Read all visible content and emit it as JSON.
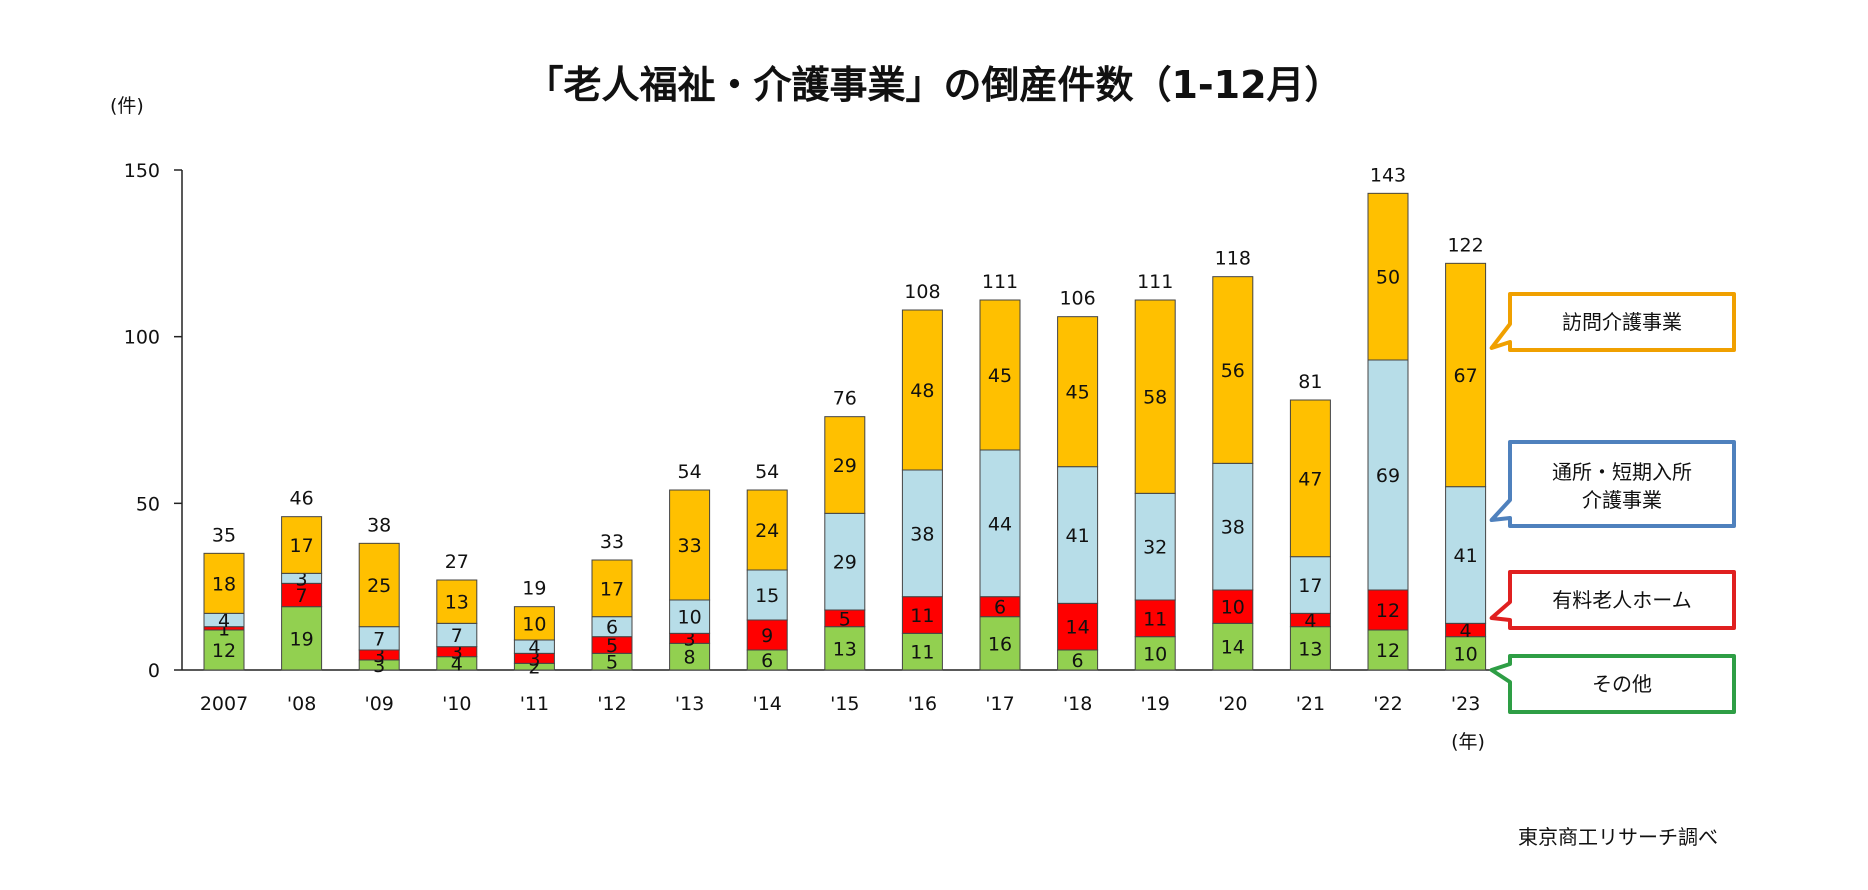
{
  "chart_data": {
    "type": "bar",
    "stacked": true,
    "title": "「老人福祉・介護事業」の倒産件数（1-12月）",
    "y_unit": "(件)",
    "x_unit": "(年)",
    "source": "東京商工リサーチ調べ",
    "ylim": [
      0,
      150
    ],
    "yticks": [
      "0",
      "50",
      "100",
      "150"
    ],
    "categories": [
      "2007",
      "'08",
      "'09",
      "'10",
      "'11",
      "'12",
      "'13",
      "'14",
      "'15",
      "'16",
      "'17",
      "'18",
      "'19",
      "'20",
      "'21",
      "'22",
      "'23"
    ],
    "series": [
      {
        "name": "その他",
        "color": "#92d050",
        "border": "#2e9e45",
        "values": [
          12,
          19,
          3,
          4,
          2,
          5,
          8,
          6,
          13,
          11,
          16,
          6,
          10,
          14,
          13,
          12,
          10
        ]
      },
      {
        "name": "有料老人ホーム",
        "color": "#ff0000",
        "border": "#e02020",
        "values": [
          1,
          7,
          3,
          3,
          3,
          5,
          3,
          9,
          5,
          11,
          6,
          14,
          11,
          10,
          4,
          12,
          4
        ]
      },
      {
        "name": "通所・短期入所介護事業",
        "color": "#b7dde8",
        "border": "#4f81bd",
        "values": [
          4,
          3,
          7,
          7,
          4,
          6,
          10,
          15,
          29,
          38,
          44,
          41,
          32,
          38,
          17,
          69,
          41
        ]
      },
      {
        "name": "訪問介護事業",
        "color": "#ffc000",
        "border": "#f0a000",
        "values": [
          18,
          17,
          25,
          13,
          10,
          17,
          33,
          24,
          29,
          48,
          45,
          45,
          58,
          56,
          47,
          50,
          67
        ]
      }
    ],
    "totals": [
      35,
      46,
      38,
      27,
      19,
      33,
      54,
      54,
      76,
      108,
      111,
      106,
      111,
      118,
      81,
      143,
      122
    ],
    "legend_order": [
      "訪問介護事業",
      "通所・短期入所介護事業",
      "有料老人ホーム",
      "その他"
    ],
    "legend_placement": "right",
    "grid": false
  }
}
